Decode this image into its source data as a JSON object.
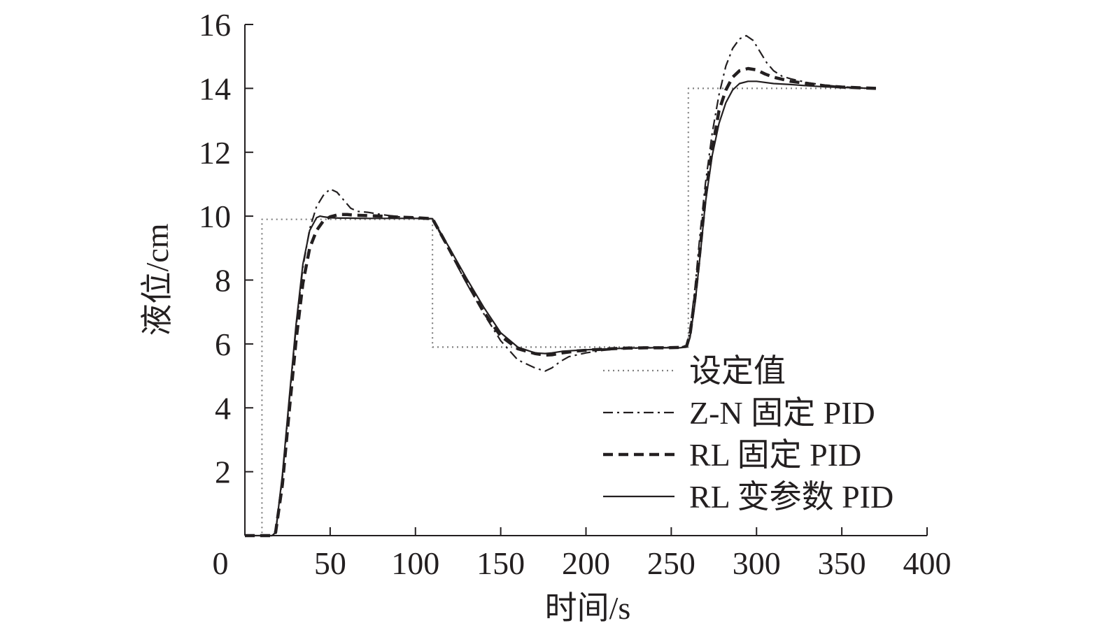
{
  "chart_data": {
    "type": "line",
    "title": "",
    "xlabel": "时间/s",
    "ylabel": "液位/cm",
    "xlim": [
      0,
      400
    ],
    "ylim": [
      0,
      16
    ],
    "xticks": [
      0,
      50,
      100,
      150,
      200,
      250,
      300,
      350,
      400
    ],
    "yticks": [
      2,
      4,
      6,
      8,
      10,
      12,
      14,
      16
    ],
    "grid": false,
    "legend_position": "bottom-right",
    "series": [
      {
        "name": "设定值",
        "style": "dotted",
        "color": "#808080",
        "x": [
          0,
          10,
          10,
          110,
          110,
          260,
          260,
          370
        ],
        "y": [
          0,
          0,
          9.9,
          9.9,
          5.9,
          5.9,
          14,
          14
        ]
      },
      {
        "name": "Z-N 固定 PID",
        "style": "dashdot",
        "color": "#231f20",
        "x": [
          0,
          16,
          18,
          22,
          26,
          30,
          34,
          38,
          42,
          46,
          50,
          54,
          58,
          62,
          66,
          72,
          80,
          90,
          100,
          110,
          120,
          130,
          140,
          150,
          160,
          170,
          176,
          180,
          185,
          190,
          200,
          210,
          220,
          230,
          240,
          250,
          255,
          259,
          261,
          264,
          267,
          270,
          274,
          278,
          282,
          286,
          290,
          294,
          298,
          302,
          306,
          310,
          315,
          320,
          330,
          340,
          350,
          360,
          370
        ],
        "y": [
          0,
          0,
          0.1,
          1.8,
          4.2,
          6.5,
          8.4,
          9.6,
          10.3,
          10.65,
          10.85,
          10.75,
          10.5,
          10.25,
          10.15,
          10.12,
          10.05,
          9.98,
          9.95,
          9.92,
          8.9,
          7.9,
          6.95,
          6.1,
          5.5,
          5.25,
          5.15,
          5.25,
          5.45,
          5.6,
          5.72,
          5.8,
          5.85,
          5.87,
          5.88,
          5.88,
          5.89,
          5.95,
          6.4,
          7.8,
          9.5,
          11.0,
          12.6,
          13.8,
          14.7,
          15.25,
          15.55,
          15.65,
          15.5,
          15.15,
          14.8,
          14.55,
          14.38,
          14.3,
          14.18,
          14.1,
          14.05,
          14.02,
          14.0
        ]
      },
      {
        "name": "RL 固定 PID",
        "style": "dashed",
        "color": "#231f20",
        "x": [
          0,
          16,
          18,
          22,
          26,
          30,
          34,
          38,
          42,
          46,
          50,
          55,
          60,
          65,
          70,
          80,
          90,
          100,
          110,
          120,
          130,
          140,
          150,
          160,
          170,
          176,
          180,
          186,
          195,
          205,
          215,
          225,
          235,
          245,
          255,
          259,
          261,
          264,
          267,
          270,
          274,
          278,
          282,
          286,
          290,
          295,
          300,
          305,
          310,
          320,
          330,
          340,
          350,
          360,
          370
        ],
        "y": [
          0,
          0,
          0.1,
          1.6,
          3.9,
          6.1,
          7.9,
          9.0,
          9.55,
          9.85,
          9.98,
          10.05,
          10.05,
          10.03,
          10.02,
          10.0,
          9.97,
          9.95,
          9.92,
          8.95,
          7.95,
          7.0,
          6.25,
          5.85,
          5.7,
          5.65,
          5.66,
          5.72,
          5.78,
          5.82,
          5.85,
          5.87,
          5.88,
          5.88,
          5.89,
          5.93,
          6.3,
          7.5,
          9.0,
          10.6,
          12.1,
          13.3,
          13.95,
          14.35,
          14.55,
          14.62,
          14.58,
          14.45,
          14.35,
          14.22,
          14.15,
          14.08,
          14.04,
          14.02,
          14.0
        ]
      },
      {
        "name": "RL 变参数 PID",
        "style": "solid",
        "color": "#231f20",
        "x": [
          0,
          16,
          18,
          22,
          26,
          30,
          34,
          38,
          42,
          44,
          46,
          50,
          55,
          60,
          70,
          80,
          90,
          100,
          110,
          120,
          130,
          140,
          150,
          160,
          170,
          176,
          180,
          186,
          195,
          205,
          215,
          225,
          235,
          245,
          255,
          259,
          261,
          264,
          267,
          270,
          274,
          278,
          282,
          286,
          290,
          295,
          300,
          310,
          320,
          330,
          340,
          350,
          360,
          370
        ],
        "y": [
          0,
          0,
          0.1,
          1.9,
          4.3,
          6.6,
          8.5,
          9.55,
          9.95,
          10.0,
          9.98,
          9.95,
          9.94,
          9.94,
          9.93,
          9.93,
          9.93,
          9.93,
          9.92,
          9.0,
          8.05,
          7.15,
          6.35,
          5.9,
          5.72,
          5.7,
          5.72,
          5.77,
          5.8,
          5.83,
          5.85,
          5.87,
          5.88,
          5.88,
          5.88,
          5.9,
          6.2,
          7.3,
          8.8,
          10.4,
          11.9,
          12.9,
          13.55,
          13.95,
          14.15,
          14.22,
          14.22,
          14.15,
          14.12,
          14.08,
          14.05,
          14.03,
          14.01,
          14.0
        ]
      }
    ]
  }
}
